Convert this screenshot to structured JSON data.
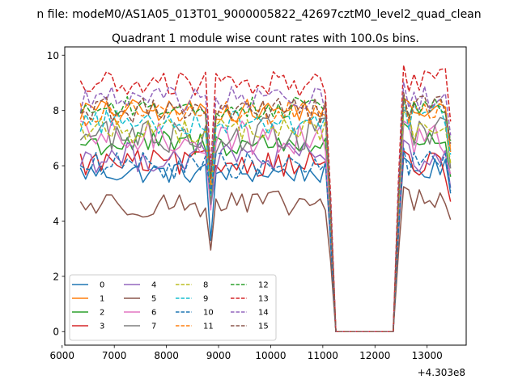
{
  "chart_data": {
    "type": "line",
    "suptitle": "n file: modeM0/AS1A05_013T01_9000005822_42697cztM0_level2_quad_clean",
    "title": "Quadrant 1 module wise count rates with 100.0s bins.",
    "xlabel": "",
    "ylabel": "",
    "x_offset_label": "+4.303e8",
    "xlim": [
      6050,
      13750
    ],
    "ylim": [
      -0.49,
      10.3
    ],
    "xticks": [
      6000,
      7000,
      8000,
      9000,
      10000,
      11000,
      12000,
      13000
    ],
    "xtick_labels": [
      "6000",
      "7000",
      "8000",
      "9000",
      "10000",
      "11000",
      "12000",
      "13000"
    ],
    "yticks": [
      0,
      2,
      4,
      6,
      8,
      10
    ],
    "ytick_labels": [
      "0",
      "2",
      "4",
      "6",
      "8",
      "10"
    ],
    "x_start": 6350,
    "x_step": 100,
    "n_points": 72,
    "segment1_end": 11050,
    "gap_start": 11250,
    "gap_end": 12450,
    "dip_x": 8850,
    "legend_position": "lower-left",
    "legend_columns": 4,
    "series": [
      {
        "name": "0",
        "color": "#1f77b4",
        "dash": "solid",
        "level": 5.75,
        "noise": 0.25,
        "dip": 3.3,
        "seg2_level": 5.85,
        "end_value": 5.0
      },
      {
        "name": "1",
        "color": "#ff7f0e",
        "dash": "solid",
        "level": 8.0,
        "noise": 0.25,
        "dip": 4.6,
        "seg2_level": 8.0,
        "end_value": 6.5
      },
      {
        "name": "2",
        "color": "#2ca02c",
        "dash": "solid",
        "level": 6.8,
        "noise": 0.3,
        "dip": 4.8,
        "seg2_level": 7.0,
        "end_value": 5.6
      },
      {
        "name": "3",
        "color": "#d62728",
        "dash": "solid",
        "level": 6.1,
        "noise": 0.3,
        "dip": 5.2,
        "seg2_level": 6.0,
        "end_value": 4.7
      },
      {
        "name": "4",
        "color": "#9467bd",
        "dash": "solid",
        "level": 6.3,
        "noise": 0.35,
        "dip": 4.5,
        "seg2_level": 6.3,
        "end_value": 5.2
      },
      {
        "name": "5",
        "color": "#8c564b",
        "dash": "solid",
        "level": 4.6,
        "noise": 0.3,
        "dip": 2.95,
        "seg2_level": 4.7,
        "end_value": 4.05
      },
      {
        "name": "6",
        "color": "#e377c2",
        "dash": "solid",
        "level": 7.0,
        "noise": 0.4,
        "dip": 4.4,
        "seg2_level": 6.9,
        "end_value": 5.7
      },
      {
        "name": "7",
        "color": "#7f7f7f",
        "dash": "solid",
        "level": 7.1,
        "noise": 0.4,
        "dip": 4.6,
        "seg2_level": 7.3,
        "end_value": 5.9
      },
      {
        "name": "8",
        "color": "#bcbd22",
        "dash": "dashed",
        "level": 7.3,
        "noise": 0.3,
        "dip": 4.9,
        "seg2_level": 7.4,
        "end_value": 6.1
      },
      {
        "name": "9",
        "color": "#17becf",
        "dash": "dashed",
        "level": 7.6,
        "noise": 0.3,
        "dip": 4.9,
        "seg2_level": 7.8,
        "end_value": 6.4
      },
      {
        "name": "10",
        "color": "#1f77b4",
        "dash": "dashed",
        "level": 6.0,
        "noise": 0.3,
        "dip": 5.0,
        "seg2_level": 6.1,
        "end_value": 5.1
      },
      {
        "name": "11",
        "color": "#ff7f0e",
        "dash": "dashed",
        "level": 7.9,
        "noise": 0.3,
        "dip": 5.3,
        "seg2_level": 8.0,
        "end_value": 6.6
      },
      {
        "name": "12",
        "color": "#2ca02c",
        "dash": "dashed",
        "level": 8.1,
        "noise": 0.25,
        "dip": 5.6,
        "seg2_level": 8.1,
        "end_value": 6.9
      },
      {
        "name": "13",
        "color": "#d62728",
        "dash": "dashed",
        "level": 8.95,
        "noise": 0.3,
        "dip": 5.9,
        "seg2_level": 9.1,
        "end_value": 7.6
      },
      {
        "name": "14",
        "color": "#9467bd",
        "dash": "dashed",
        "level": 8.4,
        "noise": 0.3,
        "dip": 5.8,
        "seg2_level": 8.5,
        "end_value": 7.1
      },
      {
        "name": "15",
        "color": "#8c564b",
        "dash": "dashed",
        "level": 8.0,
        "noise": 0.3,
        "dip": 5.5,
        "seg2_level": 8.1,
        "end_value": 6.8
      }
    ]
  }
}
